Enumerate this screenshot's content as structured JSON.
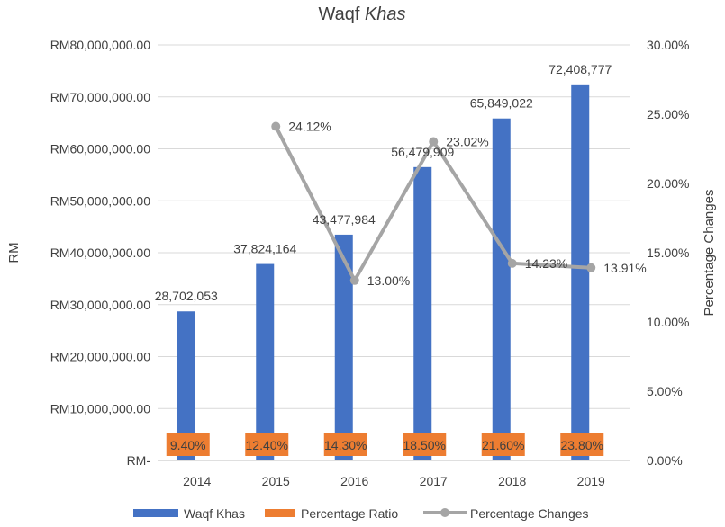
{
  "chart_data": {
    "type": "bar",
    "title_main": "Waqf ",
    "title_italic": "Khas",
    "categories": [
      "2014",
      "2015",
      "2016",
      "2017",
      "2018",
      "2019"
    ],
    "series": [
      {
        "name": "Waqf Khas",
        "type": "bar",
        "axis": "left",
        "values": [
          28702053,
          37824164,
          43477984,
          56479909,
          65849022,
          72408777
        ],
        "labels": [
          "28,702,053",
          "37,824,164",
          "43,477,984",
          "56,479,909",
          "65,849,022",
          "72,408,777"
        ]
      },
      {
        "name": "Percentage Ratio",
        "type": "bar",
        "axis": "left",
        "values": [
          9.4,
          12.4,
          14.3,
          18.5,
          21.6,
          23.8
        ],
        "labels": [
          "9.40%",
          "12.40%",
          "14.30%",
          "18.50%",
          "21.60%",
          "23.80%"
        ]
      },
      {
        "name": "Percentage Changes",
        "type": "line",
        "axis": "right",
        "values": [
          null,
          24.12,
          13.0,
          23.02,
          14.23,
          13.91
        ],
        "labels": [
          "",
          "24.12%",
          "13.00%",
          "23.02%",
          "14.23%",
          "13.91%"
        ]
      }
    ],
    "ylabel": "RM",
    "y2label": "Percentage Changes",
    "ylim": [
      0,
      80000000
    ],
    "y2lim": [
      0,
      30
    ],
    "yticks": [
      "RM-",
      "RM10,000,000.00",
      "RM20,000,000.00",
      "RM30,000,000.00",
      "RM40,000,000.00",
      "RM50,000,000.00",
      "RM60,000,000.00",
      "RM70,000,000.00",
      "RM80,000,000.00"
    ],
    "y2ticks": [
      "0.00%",
      "5.00%",
      "10.00%",
      "15.00%",
      "20.00%",
      "25.00%",
      "30.00%"
    ],
    "grid": true,
    "legend": "bottom",
    "colors": {
      "bar": "#4472C4",
      "ratio": "#ED7D31",
      "line": "#A5A5A5"
    }
  }
}
